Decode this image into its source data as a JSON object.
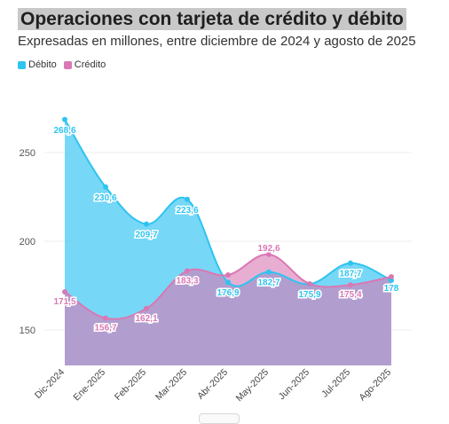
{
  "header": {
    "title": "Operaciones con tarjeta de crédito y débito",
    "subtitle": "Expresadas en millones, entre diciembre de 2024 y agosto de 2025"
  },
  "colors": {
    "debito": "#2ec4f0",
    "debito_fill": "#5fd0f5",
    "credito": "#d978b4",
    "overlap_fill": "#a99ad4"
  },
  "chart_data": {
    "type": "area",
    "categories": [
      "Dic-2024",
      "Ene-2025",
      "Feb-2025",
      "Mar-2025",
      "Abr-2025",
      "May-2025",
      "Jun-2025",
      "Jul-2025",
      "Ago-2025"
    ],
    "series": [
      {
        "name": "Débito",
        "values": [
          268.6,
          230.6,
          209.7,
          223.6,
          176.9,
          182.7,
          175.9,
          187.7,
          178
        ],
        "labels": [
          "268,6",
          "230,6",
          "209,7",
          "223,6",
          "176,9",
          "182,7",
          "175,9",
          "187,7",
          "178"
        ]
      },
      {
        "name": "Crédito",
        "values": [
          171.5,
          156.7,
          162.1,
          183.3,
          181,
          192.6,
          176,
          175.4,
          180
        ],
        "labels": [
          "171,5",
          "156,7",
          "162,1",
          "183,3",
          "",
          "192,6",
          "",
          "175,4",
          ""
        ]
      }
    ],
    "ylim": [
      130,
      280
    ],
    "yticks": [
      150,
      200,
      250
    ],
    "ytick_labels": [
      "150",
      "200",
      "250"
    ],
    "grid": true,
    "legend_position": "top-left"
  }
}
